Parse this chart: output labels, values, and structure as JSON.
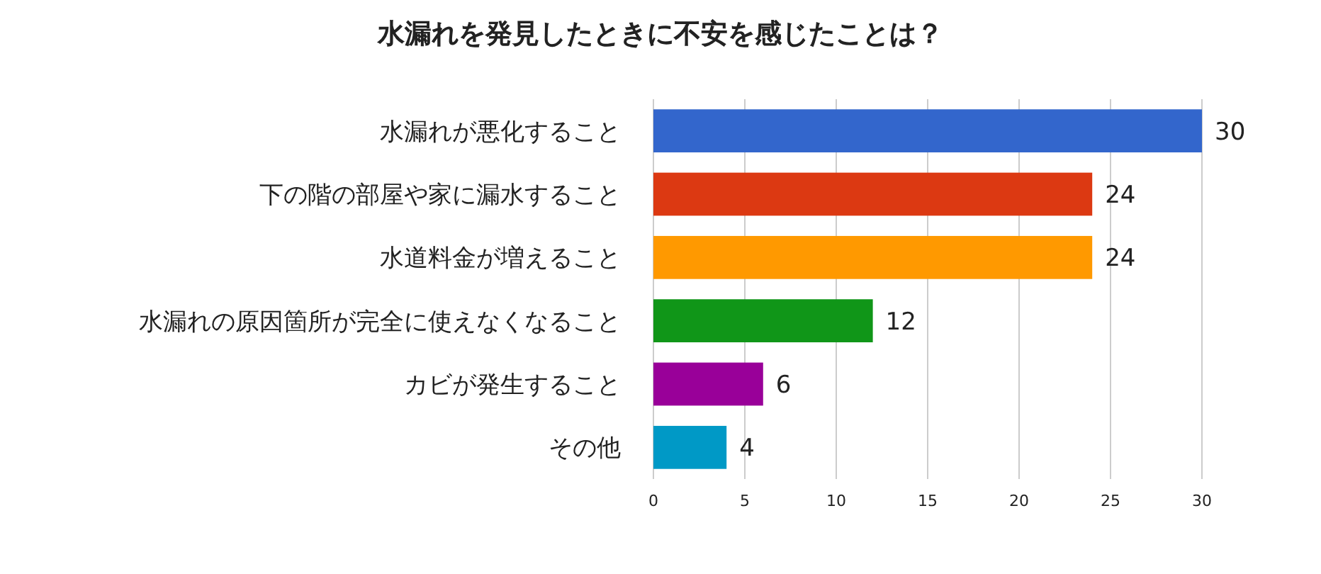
{
  "chart_data": {
    "type": "bar",
    "orientation": "horizontal",
    "title": "水漏れを発見したときに不安を感じたことは？",
    "categories": [
      "水漏れが悪化すること",
      "下の階の部屋や家に漏水すること",
      "水道料金が増えること",
      "水漏れの原因箇所が完全に使えなくなること",
      "カビが発生すること",
      "その他"
    ],
    "values": [
      30,
      24,
      24,
      12,
      6,
      4
    ],
    "colors": [
      "#3366cc",
      "#dc3912",
      "#ff9900",
      "#109618",
      "#990099",
      "#0099c6"
    ],
    "xlim": [
      0,
      30
    ],
    "xticks": [
      0,
      5,
      10,
      15,
      20,
      25,
      30
    ],
    "grid": "x",
    "data_labels": true
  }
}
